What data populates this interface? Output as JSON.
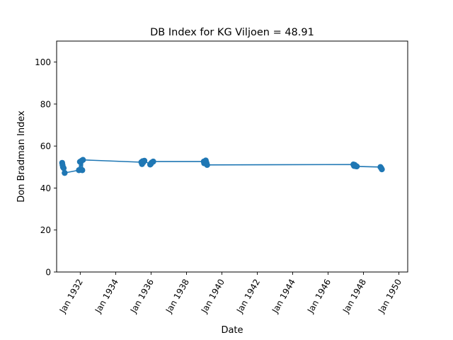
{
  "chart_data": {
    "type": "line",
    "title": "DB Index for KG Viljoen = 48.91",
    "xlabel": "Date",
    "ylabel": "Don Bradman Index",
    "xlim": [
      "1930-09-01",
      "1950-07-01"
    ],
    "ylim": [
      0,
      110
    ],
    "x_ticks": [
      {
        "date": "1932-01-01",
        "label": "Jan 1932"
      },
      {
        "date": "1934-01-01",
        "label": "Jan 1934"
      },
      {
        "date": "1936-01-01",
        "label": "Jan 1936"
      },
      {
        "date": "1938-01-01",
        "label": "Jan 1938"
      },
      {
        "date": "1940-01-01",
        "label": "Jan 1940"
      },
      {
        "date": "1942-01-01",
        "label": "Jan 1942"
      },
      {
        "date": "1944-01-01",
        "label": "Jan 1944"
      },
      {
        "date": "1946-01-01",
        "label": "Jan 1946"
      },
      {
        "date": "1948-01-01",
        "label": "Jan 1948"
      },
      {
        "date": "1950-01-01",
        "label": "Jan 1950"
      }
    ],
    "y_ticks": [
      0,
      20,
      40,
      60,
      80,
      100
    ],
    "grid": false,
    "color": "#1f77b4",
    "series": [
      {
        "points": [
          {
            "x": "1930-12-24",
            "y": 52.0
          },
          {
            "x": "1931-01-01",
            "y": 51.0
          },
          {
            "x": "1931-01-10",
            "y": 50.0
          },
          {
            "x": "1931-01-24",
            "y": 49.5
          },
          {
            "x": "1931-02-14",
            "y": 47.2
          },
          {
            "x": "1931-12-05",
            "y": 48.5
          },
          {
            "x": "1931-12-26",
            "y": 52.5
          },
          {
            "x": "1932-01-01",
            "y": 48.7
          },
          {
            "x": "1932-01-29",
            "y": 53.0
          },
          {
            "x": "1932-02-12",
            "y": 48.5
          },
          {
            "x": "1932-02-26",
            "y": 53.4
          },
          {
            "x": "1935-06-15",
            "y": 52.3
          },
          {
            "x": "1935-06-29",
            "y": 51.4
          },
          {
            "x": "1935-07-13",
            "y": 52.8
          },
          {
            "x": "1935-07-27",
            "y": 52.3
          },
          {
            "x": "1935-08-17",
            "y": 53.0
          },
          {
            "x": "1935-12-14",
            "y": 51.2
          },
          {
            "x": "1935-12-28",
            "y": 51.5
          },
          {
            "x": "1936-01-01",
            "y": 51.8
          },
          {
            "x": "1936-01-18",
            "y": 52.2
          },
          {
            "x": "1936-02-15",
            "y": 52.6
          },
          {
            "x": "1938-12-24",
            "y": 52.6
          },
          {
            "x": "1939-01-01",
            "y": 51.8
          },
          {
            "x": "1939-01-20",
            "y": 52.2
          },
          {
            "x": "1939-02-03",
            "y": 53.1
          },
          {
            "x": "1939-02-18",
            "y": 52.0
          },
          {
            "x": "1939-03-03",
            "y": 51.0
          },
          {
            "x": "1947-06-07",
            "y": 51.2
          },
          {
            "x": "1947-06-21",
            "y": 50.5
          },
          {
            "x": "1947-07-05",
            "y": 51.0
          },
          {
            "x": "1947-07-26",
            "y": 50.4
          },
          {
            "x": "1947-08-16",
            "y": 50.3
          },
          {
            "x": "1948-12-16",
            "y": 50.0
          },
          {
            "x": "1949-01-01",
            "y": 49.5
          },
          {
            "x": "1949-01-14",
            "y": 48.9
          }
        ]
      }
    ]
  }
}
